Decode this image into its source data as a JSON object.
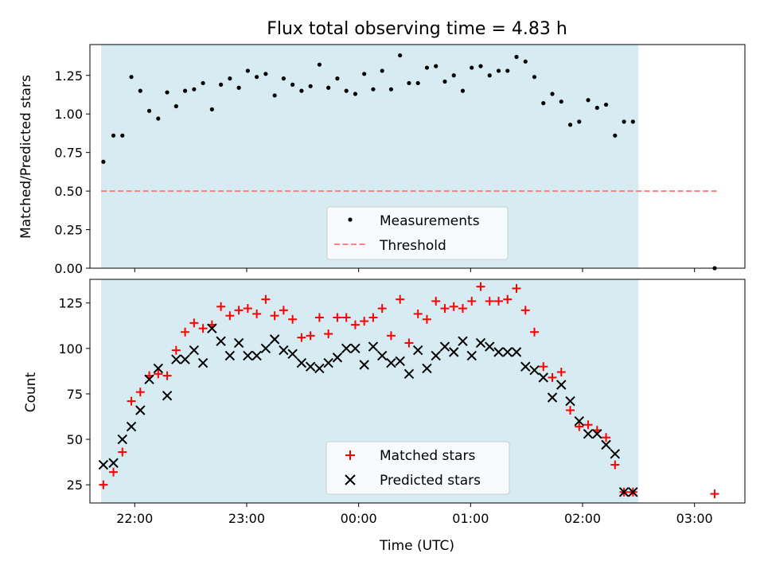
{
  "title": "Flux total observing time = 4.83 h",
  "colors": {
    "shade": "#add8e6",
    "threshold": "#ff7f7f",
    "matched": "#ff0000",
    "predicted": "#000000",
    "measure": "#000000"
  },
  "chart_data": [
    {
      "type": "scatter",
      "ylabel": "Matched/Predicted stars",
      "ylim": [
        0,
        1.45
      ],
      "yticks": [
        "0.00",
        "0.25",
        "0.50",
        "0.75",
        "1.00",
        "1.25"
      ],
      "xlim_hours": [
        21.6,
        27.45
      ],
      "shaded_interval_hours": [
        21.7,
        26.5
      ],
      "threshold": {
        "value": 0.5,
        "x_hours": [
          21.7,
          27.2
        ]
      },
      "legend": {
        "position": "lower-center",
        "items": [
          "Measurements",
          "Threshold"
        ]
      },
      "series": [
        {
          "name": "Measurements",
          "x_hours": [
            21.72,
            21.81,
            21.89,
            21.97,
            22.05,
            22.13,
            22.21,
            22.29,
            22.37,
            22.45,
            22.53,
            22.61,
            22.69,
            22.77,
            22.85,
            22.93,
            23.01,
            23.09,
            23.17,
            23.25,
            23.33,
            23.41,
            23.49,
            23.57,
            23.65,
            23.73,
            23.81,
            23.89,
            23.97,
            24.05,
            24.13,
            24.21,
            24.29,
            24.37,
            24.45,
            24.53,
            24.61,
            24.69,
            24.77,
            24.85,
            24.93,
            25.01,
            25.09,
            25.17,
            25.25,
            25.33,
            25.41,
            25.49,
            25.57,
            25.65,
            25.73,
            25.81,
            25.89,
            25.97,
            26.05,
            26.13,
            26.21,
            26.29,
            26.37,
            26.45,
            27.18
          ],
          "values": [
            0.69,
            0.86,
            0.86,
            1.24,
            1.15,
            1.02,
            0.97,
            1.14,
            1.05,
            1.15,
            1.16,
            1.2,
            1.03,
            1.19,
            1.23,
            1.17,
            1.28,
            1.24,
            1.26,
            1.12,
            1.23,
            1.19,
            1.15,
            1.18,
            1.32,
            1.17,
            1.23,
            1.15,
            1.13,
            1.26,
            1.16,
            1.28,
            1.16,
            1.38,
            1.2,
            1.2,
            1.3,
            1.31,
            1.21,
            1.25,
            1.15,
            1.3,
            1.31,
            1.25,
            1.28,
            1.28,
            1.37,
            1.34,
            1.24,
            1.07,
            1.13,
            1.08,
            0.93,
            0.95,
            1.09,
            1.04,
            1.06,
            0.86,
            0.95,
            0.95,
            0.0
          ]
        }
      ]
    },
    {
      "type": "scatter",
      "xlabel": "Time (UTC)",
      "ylabel": "Count",
      "ylim": [
        15,
        138
      ],
      "yticks": [
        "25",
        "50",
        "75",
        "100",
        "125"
      ],
      "xlim_hours": [
        21.6,
        27.45
      ],
      "xticks": [
        {
          "label": "22:00",
          "hours": 22
        },
        {
          "label": "23:00",
          "hours": 23
        },
        {
          "label": "00:00",
          "hours": 24
        },
        {
          "label": "01:00",
          "hours": 25
        },
        {
          "label": "02:00",
          "hours": 26
        },
        {
          "label": "03:00",
          "hours": 27
        }
      ],
      "shaded_interval_hours": [
        21.7,
        26.5
      ],
      "legend": {
        "position": "lower-center",
        "items": [
          "Matched stars",
          "Predicted stars"
        ]
      },
      "series": [
        {
          "name": "Matched stars",
          "marker": "plus",
          "x_hours": [
            21.72,
            21.81,
            21.89,
            21.97,
            22.05,
            22.13,
            22.21,
            22.29,
            22.37,
            22.45,
            22.53,
            22.61,
            22.69,
            22.77,
            22.85,
            22.93,
            23.01,
            23.09,
            23.17,
            23.25,
            23.33,
            23.41,
            23.49,
            23.57,
            23.65,
            23.73,
            23.81,
            23.89,
            23.97,
            24.05,
            24.13,
            24.21,
            24.29,
            24.37,
            24.45,
            24.53,
            24.61,
            24.69,
            24.77,
            24.85,
            24.93,
            25.01,
            25.09,
            25.17,
            25.25,
            25.33,
            25.41,
            25.49,
            25.57,
            25.65,
            25.73,
            25.81,
            25.89,
            25.97,
            26.05,
            26.13,
            26.21,
            26.29,
            26.37,
            26.45,
            27.18
          ],
          "values": [
            25,
            32,
            43,
            71,
            76,
            85,
            86,
            85,
            99,
            109,
            114,
            111,
            113,
            123,
            118,
            121,
            122,
            119,
            127,
            118,
            121,
            116,
            106,
            107,
            117,
            108,
            117,
            117,
            113,
            115,
            117,
            122,
            107,
            127,
            103,
            119,
            116,
            126,
            122,
            123,
            122,
            126,
            134,
            126,
            126,
            127,
            133,
            121,
            109,
            90,
            84,
            87,
            66,
            57,
            58,
            55,
            51,
            36,
            21,
            21,
            20
          ]
        },
        {
          "name": "Predicted stars",
          "marker": "x",
          "x_hours": [
            21.72,
            21.81,
            21.89,
            21.97,
            22.05,
            22.13,
            22.21,
            22.29,
            22.37,
            22.45,
            22.53,
            22.61,
            22.69,
            22.77,
            22.85,
            22.93,
            23.01,
            23.09,
            23.17,
            23.25,
            23.33,
            23.41,
            23.49,
            23.57,
            23.65,
            23.73,
            23.81,
            23.89,
            23.97,
            24.05,
            24.13,
            24.21,
            24.29,
            24.37,
            24.45,
            24.53,
            24.61,
            24.69,
            24.77,
            24.85,
            24.93,
            25.01,
            25.09,
            25.17,
            25.25,
            25.33,
            25.41,
            25.49,
            25.57,
            25.65,
            25.73,
            25.81,
            25.89,
            25.97,
            26.05,
            26.13,
            26.21,
            26.29,
            26.37,
            26.45
          ],
          "values": [
            36,
            37,
            50,
            57,
            66,
            83,
            89,
            74,
            94,
            94,
            99,
            92,
            111,
            104,
            96,
            103,
            96,
            96,
            100,
            105,
            99,
            97,
            92,
            90,
            89,
            92,
            95,
            100,
            100,
            91,
            101,
            96,
            92,
            93,
            86,
            99,
            89,
            96,
            101,
            98,
            104,
            96,
            103,
            101,
            98,
            98,
            98,
            90,
            88,
            84,
            73,
            80,
            71,
            60,
            53,
            53,
            47,
            42,
            21,
            21
          ]
        }
      ]
    }
  ]
}
